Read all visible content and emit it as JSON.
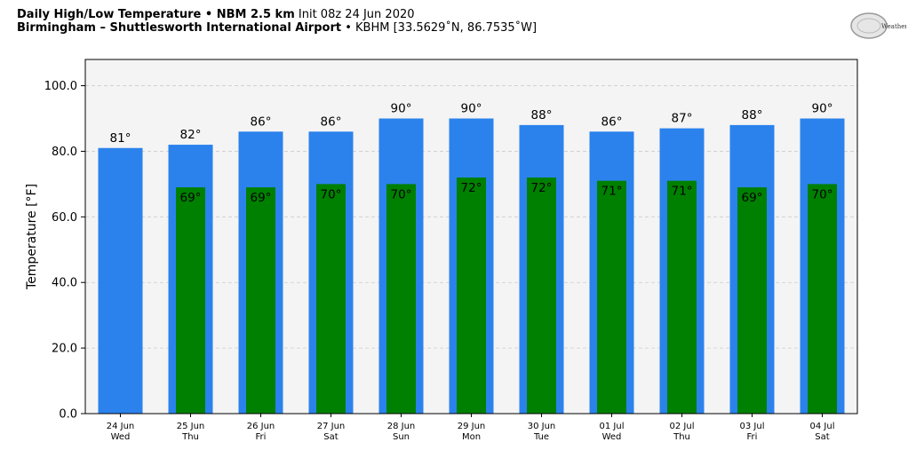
{
  "header": {
    "line1_bold": "Daily High/Low Temperature • NBM 2.5 km",
    "line1_normal": "Init 08z 24 Jun 2020",
    "line2_bold": "Birmingham – Shuttlesworth International Airport",
    "line2_normal": "• KBHM [33.5629˚N, 86.7535˚W]"
  },
  "logo": {
    "text": "WeatherBELL"
  },
  "colors": {
    "high": "#2b82ec",
    "low": "#008000",
    "plot_bg": "#f4f4f4",
    "grid": "#cccccc"
  },
  "chart_data": {
    "type": "bar",
    "ylabel": "Temperature [°F]",
    "ylim": [
      0,
      108
    ],
    "yticks": [
      0,
      20,
      40,
      60,
      80,
      100
    ],
    "ytick_labels": [
      "0.0",
      "20.0",
      "40.0",
      "60.0",
      "80.0",
      "100.0"
    ],
    "grid": true,
    "categories": [
      {
        "date": "24 Jun",
        "day": "Wed"
      },
      {
        "date": "25 Jun",
        "day": "Thu"
      },
      {
        "date": "26 Jun",
        "day": "Fri"
      },
      {
        "date": "27 Jun",
        "day": "Sat"
      },
      {
        "date": "28 Jun",
        "day": "Sun"
      },
      {
        "date": "29 Jun",
        "day": "Mon"
      },
      {
        "date": "30 Jun",
        "day": "Tue"
      },
      {
        "date": "01 Jul",
        "day": "Wed"
      },
      {
        "date": "02 Jul",
        "day": "Thu"
      },
      {
        "date": "03 Jul",
        "day": "Fri"
      },
      {
        "date": "04 Jul",
        "day": "Sat"
      }
    ],
    "series": [
      {
        "values": [
          81,
          82,
          86,
          86,
          90,
          90,
          88,
          86,
          87,
          88,
          90
        ],
        "labels": [
          "81°",
          "82°",
          "86°",
          "86°",
          "90°",
          "90°",
          "88°",
          "86°",
          "87°",
          "88°",
          "90°"
        ]
      },
      {
        "values": [
          null,
          69,
          69,
          70,
          70,
          72,
          72,
          71,
          71,
          69,
          70
        ],
        "labels": [
          "",
          "69°",
          "69°",
          "70°",
          "70°",
          "72°",
          "72°",
          "71°",
          "71°",
          "69°",
          "70°"
        ]
      }
    ]
  }
}
